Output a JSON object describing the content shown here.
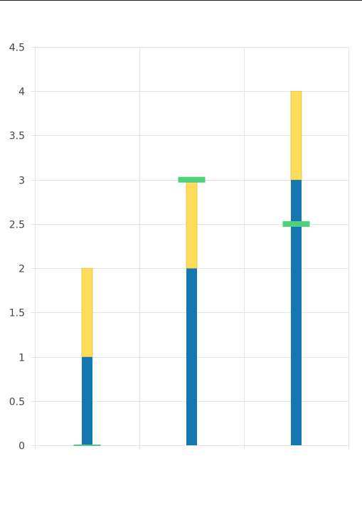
{
  "chart_data": {
    "type": "bar",
    "stacked": true,
    "title": "",
    "xlabel": "",
    "ylabel": "",
    "categories": [
      "",
      "",
      ""
    ],
    "ylim": [
      0,
      4.5
    ],
    "yticks": [
      "0",
      "0.5",
      "1",
      "1.5",
      "2",
      "2.5",
      "3",
      "3.5",
      "4",
      "4.5"
    ],
    "grid": true,
    "legend": "none",
    "series": [
      {
        "type": "bar",
        "values": [
          1,
          2,
          3
        ],
        "color": "#1477b0"
      },
      {
        "type": "bar",
        "values": [
          1,
          1,
          1
        ],
        "color": "#ffdc5a"
      },
      {
        "type": "marker",
        "values": [
          0,
          3,
          2.5
        ],
        "color": "#4ed07d"
      }
    ]
  }
}
